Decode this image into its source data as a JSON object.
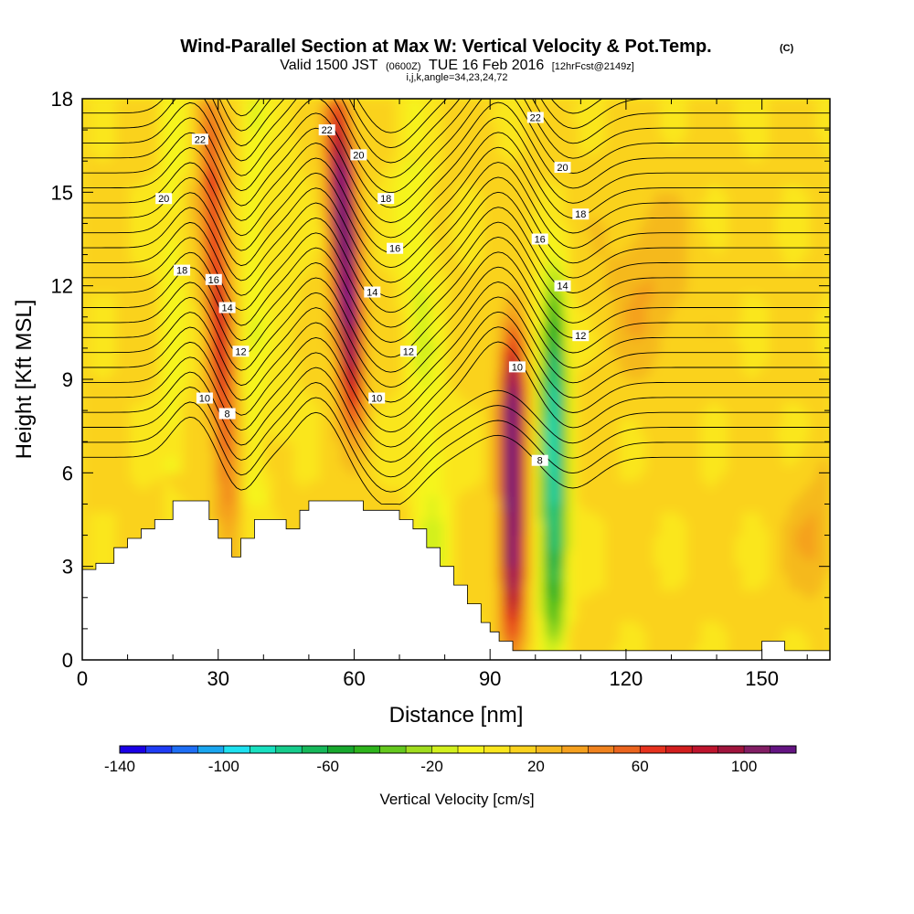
{
  "title": {
    "main": "Wind-Parallel Section at Max W: Vertical Velocity & Pot.Temp.",
    "main_unit": "(C)",
    "valid_prefix": "Valid 1500 JST",
    "valid_z": "(0600Z)",
    "valid_date": "TUE 16 Feb 2016",
    "valid_fcst": "[12hrFcst@2149z]",
    "indices": "i,j,k,angle=34,23,24,72"
  },
  "chart_data": {
    "type": "heatmap",
    "xlabel": "Distance [nm]",
    "ylabel": "Height [Kft MSL]",
    "xlim": [
      0,
      165
    ],
    "ylim": [
      0,
      18
    ],
    "x_ticks": [
      0,
      30,
      60,
      90,
      120,
      150
    ],
    "y_ticks": [
      0,
      3,
      6,
      9,
      12,
      15,
      18
    ],
    "colorbar": {
      "label": "Vertical Velocity [cm/s]",
      "range": [
        -140,
        120
      ],
      "step": 10,
      "tick_values": [
        -140,
        -100,
        -60,
        -20,
        20,
        60,
        100
      ],
      "colors": [
        "#1a00e6",
        "#1f3cf5",
        "#1e6ef5",
        "#1aa6f0",
        "#1ee1f0",
        "#19e0c0",
        "#16cc8c",
        "#16b85a",
        "#17a82e",
        "#2eb41c",
        "#64c81e",
        "#a0dc1e",
        "#d2f01e",
        "#f5f51e",
        "#fae61e",
        "#fad21e",
        "#f5b91e",
        "#f5a01e",
        "#f0821e",
        "#eb641e",
        "#e6321e",
        "#d21e1e",
        "#be142d",
        "#a0143c",
        "#821e64",
        "#641482"
      ]
    },
    "features": [
      {
        "x": 30,
        "w": 60,
        "kind": "updraft",
        "top": 18,
        "bottom": 5
      },
      {
        "x": 58,
        "w": 110,
        "kind": "updraft",
        "top": 18,
        "bottom": 8
      },
      {
        "x": 95,
        "w": 115,
        "kind": "updraft",
        "top": 10.5,
        "bottom": 1
      },
      {
        "x": 104,
        "w": -95,
        "kind": "downdraft",
        "top": 12,
        "bottom": 1
      }
    ],
    "terrain_kft": [
      [
        0,
        2.9
      ],
      [
        3,
        3.1
      ],
      [
        7,
        3.6
      ],
      [
        10,
        3.9
      ],
      [
        13,
        4.2
      ],
      [
        16,
        4.5
      ],
      [
        20,
        5.1
      ],
      [
        26,
        5.1
      ],
      [
        28,
        4.5
      ],
      [
        30,
        3.9
      ],
      [
        33,
        3.3
      ],
      [
        35,
        3.9
      ],
      [
        38,
        4.5
      ],
      [
        42,
        4.5
      ],
      [
        45,
        4.2
      ],
      [
        48,
        4.8
      ],
      [
        50,
        5.1
      ],
      [
        58,
        5.1
      ],
      [
        62,
        4.8
      ],
      [
        66,
        4.8
      ],
      [
        70,
        4.5
      ],
      [
        73,
        4.2
      ],
      [
        76,
        3.6
      ],
      [
        79,
        3.0
      ],
      [
        82,
        2.4
      ],
      [
        85,
        1.8
      ],
      [
        88,
        1.2
      ],
      [
        90,
        0.9
      ],
      [
        92,
        0.6
      ],
      [
        95,
        0.3
      ],
      [
        130,
        0.3
      ],
      [
        140,
        0.3
      ],
      [
        150,
        0.6
      ],
      [
        155,
        0.3
      ],
      [
        165,
        0.3
      ]
    ],
    "theta_contour_labels": [
      {
        "value": "22",
        "x": 26,
        "y": 16.7
      },
      {
        "value": "20",
        "x": 18,
        "y": 14.8
      },
      {
        "value": "18",
        "x": 22,
        "y": 12.5
      },
      {
        "value": "16",
        "x": 29,
        "y": 12.2
      },
      {
        "value": "14",
        "x": 32,
        "y": 11.3
      },
      {
        "value": "12",
        "x": 35,
        "y": 9.9
      },
      {
        "value": "10",
        "x": 27,
        "y": 8.4
      },
      {
        "value": "8",
        "x": 32,
        "y": 7.9
      },
      {
        "value": "22",
        "x": 54,
        "y": 17.0
      },
      {
        "value": "20",
        "x": 61,
        "y": 16.2
      },
      {
        "value": "18",
        "x": 67,
        "y": 14.8
      },
      {
        "value": "16",
        "x": 69,
        "y": 13.2
      },
      {
        "value": "14",
        "x": 64,
        "y": 11.8
      },
      {
        "value": "12",
        "x": 72,
        "y": 9.9
      },
      {
        "value": "10",
        "x": 65,
        "y": 8.4
      },
      {
        "value": "22",
        "x": 100,
        "y": 17.4
      },
      {
        "value": "20",
        "x": 106,
        "y": 15.8
      },
      {
        "value": "18",
        "x": 110,
        "y": 14.3
      },
      {
        "value": "16",
        "x": 101,
        "y": 13.5
      },
      {
        "value": "14",
        "x": 106,
        "y": 12.0
      },
      {
        "value": "12",
        "x": 110,
        "y": 10.4
      },
      {
        "value": "10",
        "x": 96,
        "y": 9.4
      },
      {
        "value": "8",
        "x": 101,
        "y": 6.4
      }
    ],
    "grid": false,
    "legend": "colorbar-bottom"
  }
}
